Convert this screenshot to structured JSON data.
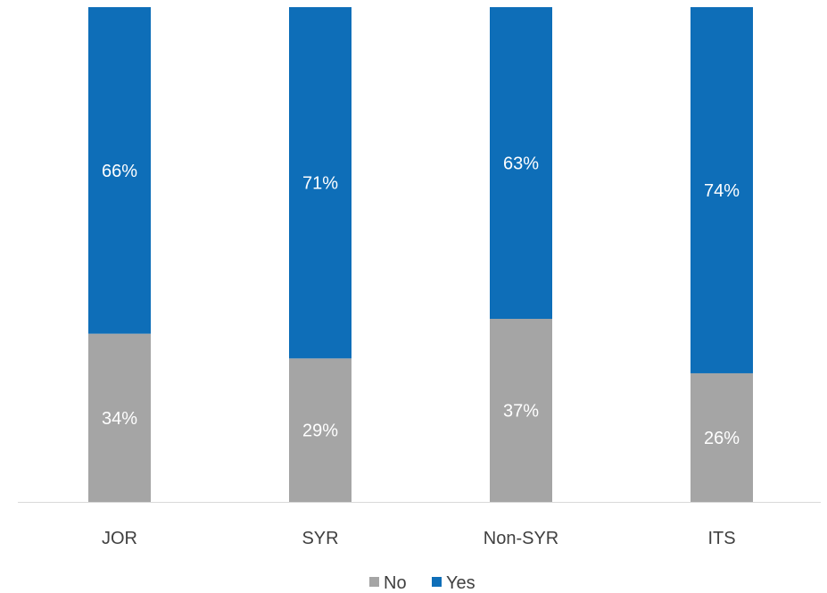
{
  "chart_data": {
    "type": "bar",
    "stacked": true,
    "percent_stacked": true,
    "categories": [
      "JOR",
      "SYR",
      "Non-SYR",
      "ITS"
    ],
    "series": [
      {
        "name": "No",
        "values": [
          34,
          29,
          37,
          26
        ],
        "labels": [
          "34%",
          "29%",
          "37%",
          "26%"
        ],
        "color": "#a5a5a5"
      },
      {
        "name": "Yes",
        "values": [
          66,
          71,
          63,
          74
        ],
        "labels": [
          "66%",
          "71%",
          "63%",
          "74%"
        ],
        "color": "#0e6eb8"
      }
    ],
    "ylim": [
      0,
      100
    ],
    "grid": false,
    "legend": {
      "position": "bottom",
      "entries": [
        "No",
        "Yes"
      ]
    }
  },
  "colors": {
    "axis": "#d9d9d9",
    "text": "#404040",
    "label_on_bar": "#ffffff"
  }
}
